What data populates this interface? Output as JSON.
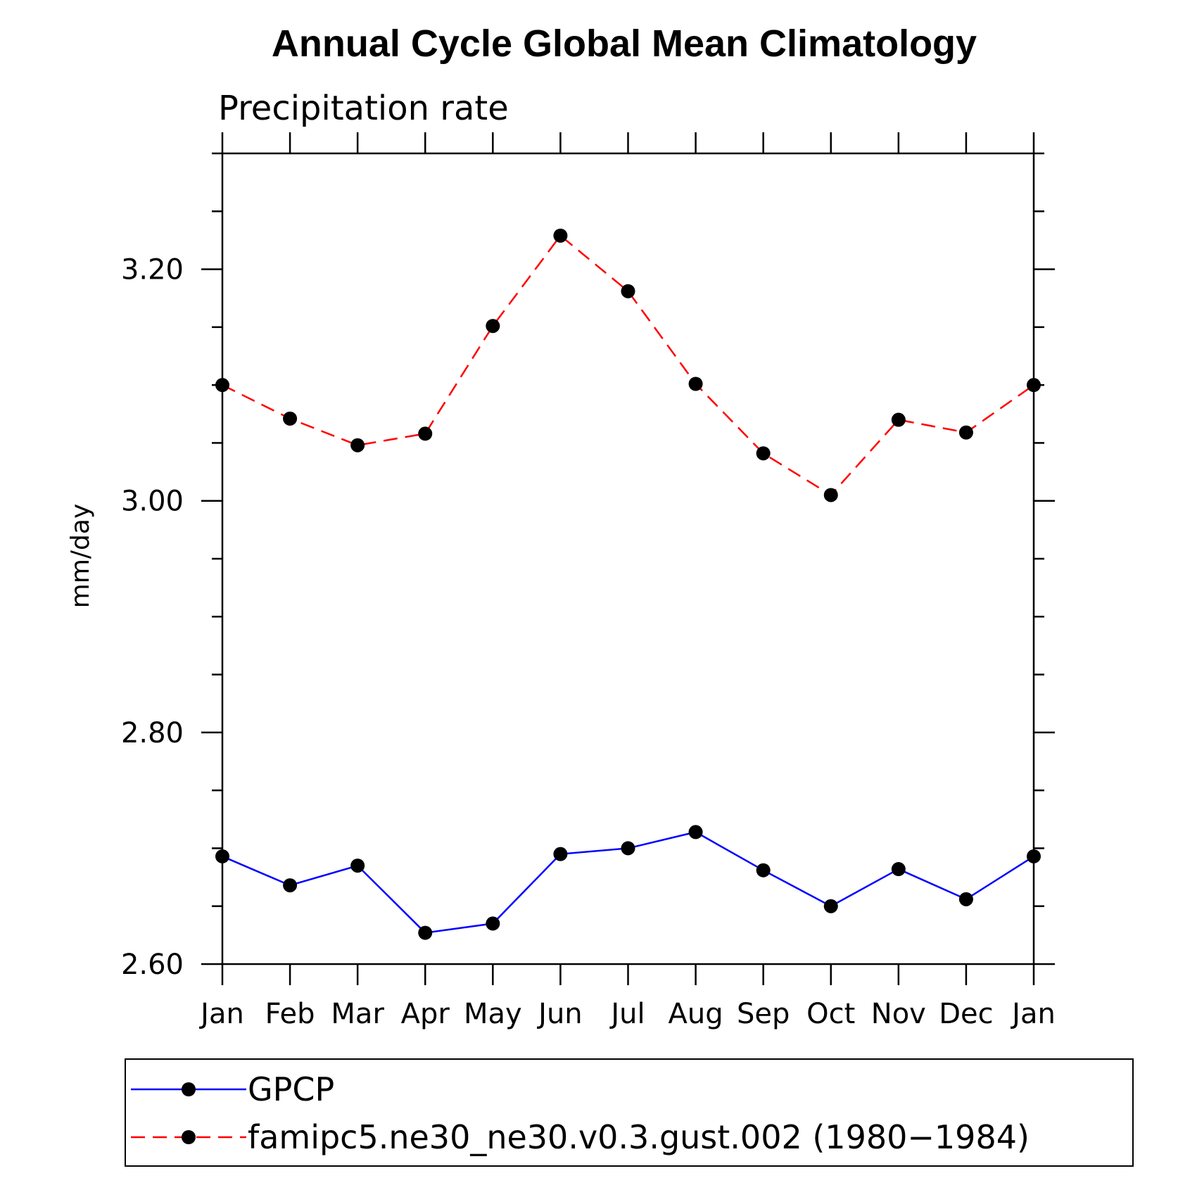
{
  "chart_data": {
    "type": "line",
    "title": "Annual Cycle Global Mean Climatology",
    "subtitle": "Precipitation rate",
    "xlabel": "",
    "ylabel": "mm/day",
    "categories": [
      "Jan",
      "Feb",
      "Mar",
      "Apr",
      "May",
      "Jun",
      "Jul",
      "Aug",
      "Sep",
      "Oct",
      "Nov",
      "Dec",
      "Jan"
    ],
    "ylim": [
      2.6,
      3.3
    ],
    "yticks": [
      2.6,
      2.8,
      3.0,
      3.2
    ],
    "ytick_labels": [
      "2.60",
      "2.80",
      "3.00",
      "3.20"
    ],
    "grid": false,
    "legend_position": "bottom",
    "series": [
      {
        "name": "GPCP",
        "color": "#0000ff",
        "dash": "solid",
        "marker": "filled-circle",
        "values": [
          2.693,
          2.668,
          2.685,
          2.627,
          2.635,
          2.695,
          2.7,
          2.714,
          2.681,
          2.65,
          2.682,
          2.656,
          2.693
        ]
      },
      {
        "name": "famipc5.ne30_ne30.v0.3.gust.002 (1980−1984)",
        "color": "#ff0000",
        "dash": "dashed",
        "marker": "filled-circle",
        "values": [
          3.1,
          3.071,
          3.048,
          3.058,
          3.151,
          3.229,
          3.181,
          3.101,
          3.041,
          3.005,
          3.07,
          3.059,
          3.1
        ]
      }
    ]
  }
}
